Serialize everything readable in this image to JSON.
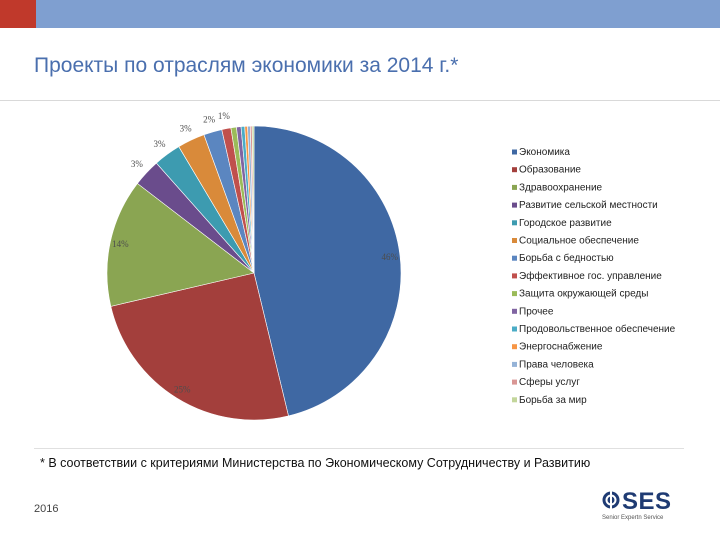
{
  "slide": {
    "title": "Проекты по отраслям экономики за 2014 г.*",
    "footnote": "* В соответствии с критериями Министерства по Экономическому Сотрудничеству и Развитию",
    "year": "2016",
    "logo_text": "SES",
    "logo_tagline": "Senior Expertn Service"
  },
  "colors": {
    "topbar": "#7f9fd0",
    "accent": "#c0392b",
    "title": "#4a6fae"
  },
  "chart_data": {
    "type": "pie",
    "title": "",
    "legend_position": "right",
    "categories": [
      "Экономика",
      "Образование",
      "Здравоохранение",
      "Развитие сельской местности",
      "Городское развитие",
      "Социальное обеспечение",
      "Борьба с бедностью",
      "Эффективное  гос. управление",
      "Защита окружающей  среды",
      "Прочее",
      "Продовольственное обеспечение",
      "Энергоснабжение",
      "Права человека",
      "Сферы услуг",
      "Борьба за мир"
    ],
    "values": [
      46,
      25,
      14,
      3,
      3,
      3,
      2,
      1,
      0.6,
      0.5,
      0.4,
      0.3,
      0.3,
      0.2,
      0.2
    ],
    "data_labels": [
      "46%",
      "25%",
      "14%",
      "3%",
      "3%",
      "3%",
      "2%",
      "1%",
      "",
      "",
      "",
      "",
      "",
      "",
      ""
    ],
    "colors": [
      "#3f68a3",
      "#a33f3c",
      "#8aa552",
      "#6a4c8c",
      "#3d9bb0",
      "#d98a3a",
      "#5b86c0",
      "#c0504d",
      "#9bbb59",
      "#8064a2",
      "#4bacc6",
      "#f79646",
      "#95b3d7",
      "#d99694",
      "#c3d69b"
    ]
  }
}
